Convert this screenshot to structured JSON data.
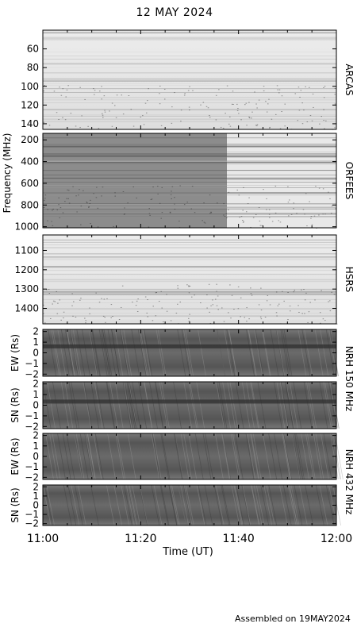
{
  "title": "12 MAY 2024",
  "footer": "Assembled on 19MAY2024",
  "colors": {
    "background": "#ffffff",
    "axis": "#000000"
  },
  "chart_data": {
    "type": "heatmap",
    "title": "12 MAY 2024",
    "xlabel": "Time (UT)",
    "x_ticks": [
      "11:00",
      "11:20",
      "11:40",
      "12:00"
    ],
    "x_range": [
      "11:00",
      "12:00"
    ],
    "panels": [
      {
        "id": "arcas",
        "instrument": "ARCAS",
        "ylabel": "",
        "y_ticks": [
          60,
          80,
          100,
          120,
          140
        ],
        "y_range": [
          40,
          146
        ],
        "shade": "light"
      },
      {
        "id": "orfees",
        "instrument": "ORFEES",
        "ylabel": "Frequency (MHz)",
        "y_ticks": [
          200,
          400,
          600,
          800,
          1000
        ],
        "y_range": [
          140,
          1010
        ],
        "shade": "split"
      },
      {
        "id": "hsrs",
        "instrument": "HSRS",
        "ylabel": "",
        "y_ticks": [
          1100,
          1200,
          1300,
          1400
        ],
        "y_range": [
          1020,
          1480
        ],
        "shade": "light"
      },
      {
        "id": "nrh150ew",
        "instrument": "NRH 150 MHz",
        "ylabel": "EW (Rs)",
        "y_ticks": [
          2,
          1,
          0,
          -1,
          -2
        ],
        "y_range": [
          2.2,
          -2.2
        ],
        "shade": "dark"
      },
      {
        "id": "nrh150ns",
        "instrument": "",
        "ylabel": "SN (Rs)",
        "y_ticks": [
          2,
          1,
          0,
          -1,
          -2
        ],
        "y_range": [
          2.2,
          -2.2
        ],
        "shade": "dark"
      },
      {
        "id": "nrh432ew",
        "instrument": "NRH 432 MHz",
        "ylabel": "EW (Rs)",
        "y_ticks": [
          2,
          1,
          0,
          -1,
          -2
        ],
        "y_range": [
          2.2,
          -2.2
        ],
        "shade": "dark"
      },
      {
        "id": "nrh432ns",
        "instrument": "",
        "ylabel": "SN (Rs)",
        "y_ticks": [
          2,
          1,
          0,
          -1,
          -2
        ],
        "y_range": [
          2.2,
          -2.2
        ],
        "shade": "dark"
      }
    ]
  }
}
